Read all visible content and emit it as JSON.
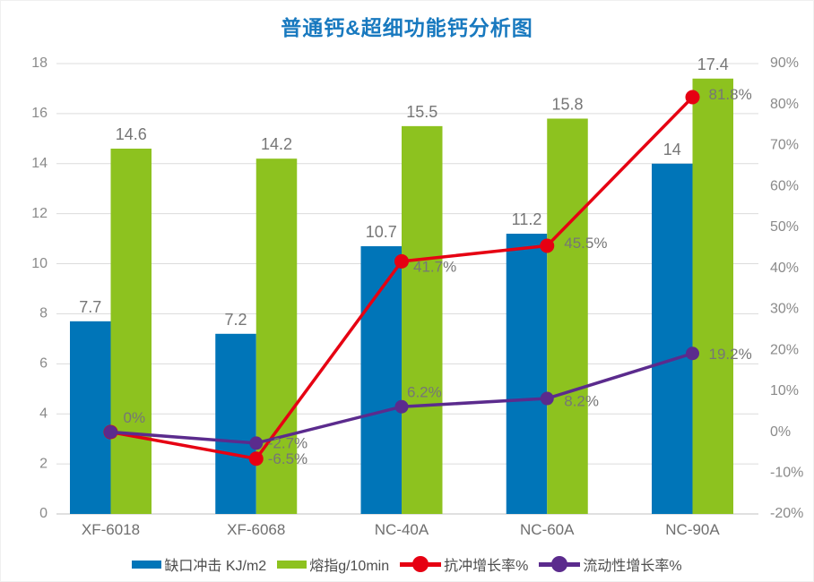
{
  "title": "普通钙&超细功能钙分析图",
  "colors": {
    "title": "#1879BF",
    "bar_blue": "#0075B8",
    "bar_green": "#8DC21F",
    "line_red": "#E60012",
    "line_purple": "#5B2B8D",
    "gridline": "#DCDCDC",
    "baseline": "#C0C0C0",
    "tick_text": "#8A8A8A",
    "data_label_text": "#767676",
    "category_text": "#6F6F6F"
  },
  "chart_data": {
    "type": "bar",
    "subtype": "combo bar + line, dual axis",
    "title": "普通钙&超细功能钙分析图",
    "categories": [
      "XF-6018",
      "XF-6068",
      "NC-40A",
      "NC-60A",
      "NC-90A"
    ],
    "left_axis": {
      "min": 0,
      "max": 18,
      "step": 2,
      "ticks": [
        "0",
        "2",
        "4",
        "6",
        "8",
        "10",
        "12",
        "14",
        "16",
        "18"
      ]
    },
    "right_axis": {
      "min": -20,
      "max": 90,
      "step": 10,
      "ticks": [
        "-20%",
        "-10%",
        "0%",
        "10%",
        "20%",
        "30%",
        "40%",
        "50%",
        "60%",
        "70%",
        "80%",
        "90%"
      ]
    },
    "grid": "horizontal only",
    "legend_position": "bottom",
    "series": [
      {
        "name": "缺口冲击 KJ/m2",
        "kind": "bar",
        "axis": "left",
        "color": "#0075B8",
        "values": [
          7.7,
          7.2,
          10.7,
          11.2,
          14
        ],
        "labels": [
          "7.7",
          "7.2",
          "10.7",
          "11.2",
          "14"
        ]
      },
      {
        "name": "熔指g/10min",
        "kind": "bar",
        "axis": "left",
        "color": "#8DC21F",
        "values": [
          14.6,
          14.2,
          15.5,
          15.8,
          17.4
        ],
        "labels": [
          "14.6",
          "14.2",
          "15.5",
          "15.8",
          "17.4"
        ]
      },
      {
        "name": "抗冲增长率%",
        "kind": "line",
        "axis": "right",
        "color": "#E60012",
        "values": [
          0,
          -6.5,
          41.7,
          45.5,
          81.8
        ],
        "labels": [
          "0%",
          "-6.5%",
          "41.7%",
          "45.5%",
          "81.8%"
        ]
      },
      {
        "name": "流动性增长率%",
        "kind": "line",
        "axis": "right",
        "color": "#5B2B8D",
        "values": [
          0,
          -2.7,
          6.2,
          8.2,
          19.2
        ],
        "labels": [
          "0%",
          "-2.7%",
          "6.2%",
          "8.2%",
          "19.2%"
        ]
      }
    ]
  }
}
